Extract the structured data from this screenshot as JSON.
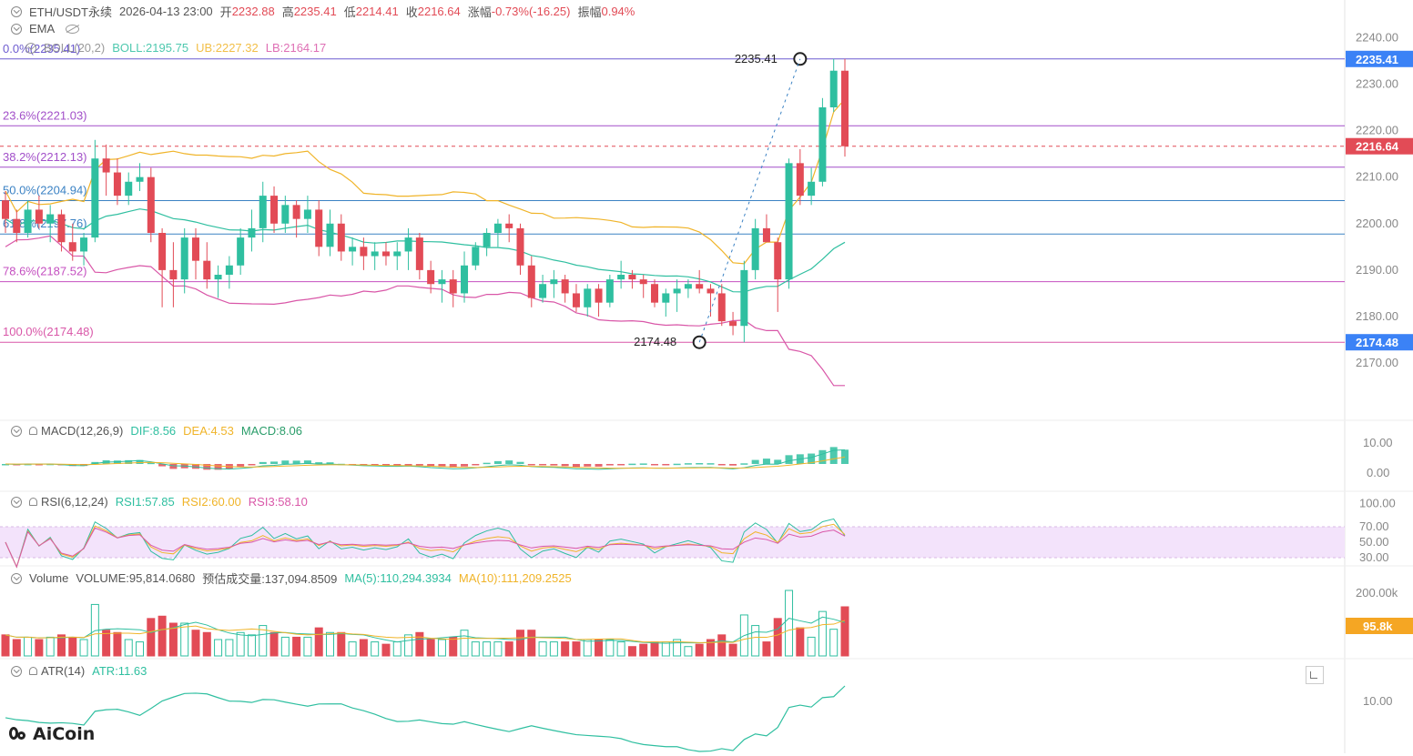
{
  "header": {
    "symbol": "ETH/USDT永续",
    "datetime": "2026-04-13 23:00",
    "open_label": "开",
    "open": "2232.88",
    "high_label": "高",
    "high": "2235.41",
    "low_label": "低",
    "low": "2214.41",
    "close_label": "收",
    "close": "2216.64",
    "change_label": "涨幅",
    "change": "-0.73%(-16.25)",
    "amplitude_label": "振幅",
    "amplitude": "0.94%"
  },
  "indicators": {
    "ema": "EMA",
    "boll": {
      "name": "BOLL(20,2)",
      "boll": "BOLL:2195.75",
      "ub": "UB:2227.32",
      "lb": "LB:2164.17"
    },
    "macd": {
      "name": "MACD(12,26,9)",
      "dif": "DIF:8.56",
      "dea": "DEA:4.53",
      "macd": "MACD:8.06"
    },
    "rsi": {
      "name": "RSI(6,12,24)",
      "rsi1": "RSI1:57.85",
      "rsi2": "RSI2:60.00",
      "rsi3": "RSI3:58.10"
    },
    "volume": {
      "name": "Volume",
      "volume": "VOLUME:95,814.0680",
      "estimate": "预估成交量:137,094.8509",
      "ma5": "MA(5):110,294.3934",
      "ma10": "MA(10):111,209.2525"
    },
    "atr": {
      "name": "ATR(14)",
      "atr": "ATR:11.63"
    }
  },
  "brand": {
    "logo": "AiCoin"
  },
  "colors": {
    "up": "#2fbfa0",
    "down": "#e24b56",
    "boll": "#f0b429",
    "lb": "#d957a8",
    "mid": "#2fbfa0"
  },
  "chart_data": {
    "type": "candlestick",
    "price_axis": {
      "ylim": [
        2162,
        2243
      ],
      "ticks": [
        "2240.00",
        "2230.00",
        "2220.00",
        "2210.00",
        "2200.00",
        "2190.00",
        "2180.00",
        "2170.00"
      ],
      "tick_values": [
        2240,
        2230,
        2220,
        2210,
        2200,
        2190,
        2180,
        2170
      ],
      "tags": [
        {
          "value": 2235.41,
          "label": "2235.41",
          "color": "#3b82f6"
        },
        {
          "value": 2216.64,
          "label": "2216.64",
          "color": "#e24b56"
        },
        {
          "value": 2174.48,
          "label": "2174.48",
          "color": "#3b82f6"
        }
      ]
    },
    "fibonacci": [
      {
        "label": "0.0%(2235.41)",
        "value": 2235.41,
        "color": "#6d5bd0"
      },
      {
        "label": "23.6%(2221.03)",
        "value": 2221.03,
        "color": "#a24fc9"
      },
      {
        "label": "38.2%(2212.13)",
        "value": 2212.13,
        "color": "#a24fc9"
      },
      {
        "label": "50.0%(2204.94)",
        "value": 2204.94,
        "color": "#3b82c4"
      },
      {
        "label": "61.8%(2197.76)",
        "value": 2197.76,
        "color": "#3b82c4"
      },
      {
        "label": "78.6%(2187.52)",
        "value": 2187.52,
        "color": "#c44fc0"
      },
      {
        "label": "100.0%(2174.48)",
        "value": 2174.48,
        "color": "#d957a8"
      }
    ],
    "markers": [
      {
        "label": "2235.41",
        "index": 71,
        "value": 2235.41
      },
      {
        "label": "2174.48",
        "index": 62,
        "value": 2174.48
      }
    ],
    "candles_ohlc": [
      [
        2205,
        2207,
        2198,
        2201
      ],
      [
        2201,
        2203,
        2196,
        2198
      ],
      [
        2198,
        2205,
        2197,
        2203
      ],
      [
        2203,
        2206,
        2199,
        2200
      ],
      [
        2200,
        2204,
        2196,
        2202
      ],
      [
        2202,
        2203,
        2194,
        2196
      ],
      [
        2196,
        2200,
        2192,
        2194
      ],
      [
        2194,
        2198,
        2191,
        2197
      ],
      [
        2197,
        2218,
        2196,
        2214
      ],
      [
        2214,
        2217,
        2206,
        2211
      ],
      [
        2211,
        2214,
        2204,
        2206
      ],
      [
        2206,
        2211,
        2204,
        2209
      ],
      [
        2209,
        2213,
        2207,
        2210
      ],
      [
        2210,
        2212,
        2196,
        2198
      ],
      [
        2198,
        2199,
        2182,
        2190
      ],
      [
        2190,
        2196,
        2182,
        2188
      ],
      [
        2188,
        2199,
        2185,
        2197
      ],
      [
        2197,
        2199,
        2188,
        2192
      ],
      [
        2192,
        2196,
        2186,
        2188
      ],
      [
        2188,
        2191,
        2184,
        2189
      ],
      [
        2189,
        2193,
        2186,
        2191
      ],
      [
        2191,
        2199,
        2189,
        2197
      ],
      [
        2197,
        2203,
        2194,
        2199
      ],
      [
        2199,
        2209,
        2196,
        2206
      ],
      [
        2206,
        2208,
        2198,
        2200
      ],
      [
        2200,
        2206,
        2198,
        2204
      ],
      [
        2204,
        2205,
        2197,
        2201
      ],
      [
        2201,
        2206,
        2198,
        2203
      ],
      [
        2203,
        2205,
        2193,
        2195
      ],
      [
        2195,
        2203,
        2193,
        2200
      ],
      [
        2200,
        2202,
        2192,
        2194
      ],
      [
        2194,
        2197,
        2191,
        2195
      ],
      [
        2195,
        2197,
        2190,
        2193
      ],
      [
        2193,
        2196,
        2190,
        2194
      ],
      [
        2194,
        2196,
        2191,
        2193
      ],
      [
        2193,
        2196,
        2190,
        2194
      ],
      [
        2194,
        2199,
        2190,
        2197
      ],
      [
        2197,
        2198,
        2188,
        2190
      ],
      [
        2190,
        2192,
        2185,
        2187
      ],
      [
        2187,
        2190,
        2183,
        2188
      ],
      [
        2188,
        2190,
        2182,
        2185
      ],
      [
        2185,
        2194,
        2183,
        2191
      ],
      [
        2191,
        2196,
        2190,
        2195
      ],
      [
        2195,
        2199,
        2193,
        2198
      ],
      [
        2198,
        2201,
        2195,
        2200
      ],
      [
        2200,
        2202,
        2196,
        2199
      ],
      [
        2199,
        2200,
        2189,
        2191
      ],
      [
        2191,
        2193,
        2182,
        2184
      ],
      [
        2184,
        2189,
        2183,
        2187
      ],
      [
        2187,
        2190,
        2184,
        2188
      ],
      [
        2188,
        2189,
        2183,
        2185
      ],
      [
        2185,
        2187,
        2181,
        2182
      ],
      [
        2182,
        2187,
        2180,
        2186
      ],
      [
        2186,
        2187,
        2180,
        2183
      ],
      [
        2183,
        2189,
        2182,
        2188
      ],
      [
        2188,
        2192,
        2186,
        2189
      ],
      [
        2189,
        2190,
        2186,
        2188
      ],
      [
        2188,
        2189,
        2184,
        2187
      ],
      [
        2187,
        2188,
        2182,
        2183
      ],
      [
        2183,
        2186,
        2180,
        2185
      ],
      [
        2185,
        2188,
        2181,
        2186
      ],
      [
        2186,
        2188,
        2184,
        2187
      ],
      [
        2187,
        2190,
        2185,
        2186
      ],
      [
        2186,
        2187,
        2180,
        2185
      ],
      [
        2185,
        2187,
        2178,
        2179
      ],
      [
        2179,
        2181,
        2176,
        2178
      ],
      [
        2178,
        2192,
        2174.48,
        2190
      ],
      [
        2190,
        2201,
        2188,
        2199
      ],
      [
        2199,
        2202,
        2196,
        2196
      ],
      [
        2196,
        2197,
        2181,
        2188
      ],
      [
        2188,
        2214,
        2186,
        2213
      ],
      [
        2213,
        2216,
        2204,
        2206
      ],
      [
        2206,
        2212,
        2204,
        2209
      ],
      [
        2209,
        2227,
        2208,
        2225
      ],
      [
        2225,
        2235.41,
        2224,
        2232.88
      ],
      [
        2232.88,
        2235.41,
        2214.41,
        2216.64
      ]
    ],
    "macd_axis": {
      "ticks": [
        "10.00",
        "0.00"
      ],
      "tick_values": [
        10,
        0
      ]
    },
    "rsi_axis": {
      "ticks": [
        "100.00",
        "70.00",
        "50.00",
        "30.00"
      ],
      "tick_values": [
        100,
        70,
        50,
        30
      ]
    },
    "volume_axis": {
      "ticks": [
        "200.00k"
      ],
      "tag": "95.8k"
    },
    "atr_axis": {
      "ticks": [
        "10.00"
      ]
    }
  }
}
